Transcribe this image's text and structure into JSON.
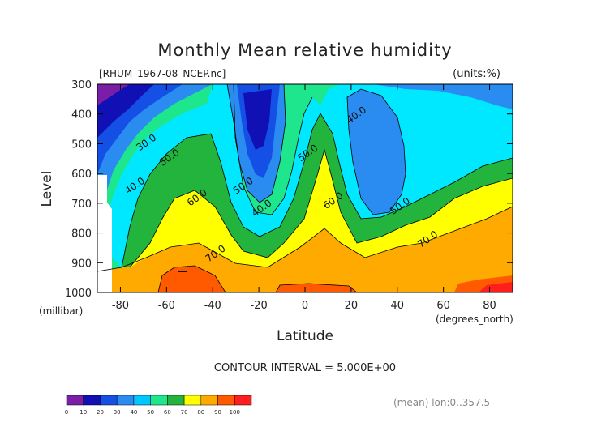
{
  "chart_data": {
    "type": "contour",
    "title": "Monthly Mean relative humidity",
    "source_label": "[RHUM_1967-08_NCEP.nc]",
    "units_label": "(units:%)",
    "ylabel": "Level",
    "y_unit_label": "(millibar)",
    "xlabel": "Latitude",
    "x_unit_label": "(degrees_north)",
    "x_ticks": [
      -80,
      -60,
      -40,
      -20,
      0,
      20,
      40,
      60,
      80
    ],
    "y_ticks": [
      300,
      400,
      500,
      600,
      700,
      800,
      900,
      1000
    ],
    "xlim": [
      -90,
      90
    ],
    "ylim": [
      1000,
      300
    ],
    "contour_interval_text": "CONTOUR INTERVAL = 5.000E+00",
    "footer_text": "(mean) lon:0..357.5",
    "contour_labels": [
      {
        "text": "30.0",
        "lat": -68,
        "level": 505
      },
      {
        "text": "50.0",
        "lat": -58,
        "level": 555
      },
      {
        "text": "40.0",
        "lat": -73,
        "level": 650
      },
      {
        "text": "60.0",
        "lat": -46,
        "level": 690
      },
      {
        "text": "50.0",
        "lat": -26,
        "level": 650
      },
      {
        "text": "40.0",
        "lat": -18,
        "level": 725
      },
      {
        "text": "70.0",
        "lat": -38,
        "level": 878
      },
      {
        "text": "50.0",
        "lat": 2,
        "level": 540
      },
      {
        "text": "60.0",
        "lat": 13,
        "level": 700
      },
      {
        "text": "40.0",
        "lat": 23,
        "level": 412
      },
      {
        "text": "50.0",
        "lat": 42,
        "level": 718
      },
      {
        "text": "70.0",
        "lat": 54,
        "level": 830
      }
    ],
    "colorbar": {
      "levels": [
        0,
        10,
        20,
        30,
        40,
        50,
        60,
        70,
        80,
        90,
        100
      ],
      "colors": [
        "#7a1ea8",
        "#1010b4",
        "#1450e6",
        "#2a8cf0",
        "#00c8ff",
        "#1ee68c",
        "#22b43c",
        "#ffff00",
        "#ffaa00",
        "#ff5a00",
        "#ff1e1e"
      ]
    },
    "field_colors": {
      "20-30": "#1450e6",
      "30-40": "#2a8cf0",
      "40-50": "#00e8ff",
      "50-60": "#1ee68c",
      "60-70": "#ffff00",
      "70-80": "#ffaa00",
      "80-90": "#ff5a00",
      "90-100": "#ff1e1e",
      "under-10": "#7a1ea8",
      "10-20": "#1010b4",
      "mid-green": "#22b43c"
    }
  }
}
